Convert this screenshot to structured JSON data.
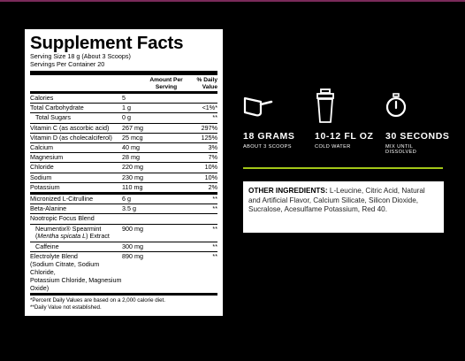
{
  "facts": {
    "title": "Supplement Facts",
    "serving_size": "Serving Size 18 g (About 3 Scoops)",
    "servings_per_container": "Servings Per Container 20",
    "col_amount_line1": "Amount Per",
    "col_amount_line2": "Serving",
    "col_dv_line1": "% Daily",
    "col_dv_line2": "Value",
    "rows": [
      {
        "name": "Calories",
        "amount": "5",
        "dv": ""
      },
      {
        "name": "Total Carbohydrate",
        "amount": "1 g",
        "dv": "<1%*"
      },
      {
        "name": "Total Sugars",
        "amount": "0 g",
        "dv": "**"
      },
      {
        "name": "Vitamin C (as ascorbic acid)",
        "amount": "267 mg",
        "dv": "297%"
      },
      {
        "name": "Vitamin D (as cholecalciferol)",
        "amount": "25 mcg",
        "dv": "125%"
      },
      {
        "name": "Calcium",
        "amount": "40 mg",
        "dv": "3%"
      },
      {
        "name": "Magnesium",
        "amount": "28 mg",
        "dv": "7%"
      },
      {
        "name": "Chloride",
        "amount": "220 mg",
        "dv": "10%"
      },
      {
        "name": "Sodium",
        "amount": "230 mg",
        "dv": "10%"
      },
      {
        "name": "Potassium",
        "amount": "110 mg",
        "dv": "2%"
      },
      {
        "name": "Micronized L-Citrulline",
        "amount": "6 g",
        "dv": "**"
      },
      {
        "name": "Beta-Alanine",
        "amount": "3.5 g",
        "dv": "**"
      },
      {
        "name": "Nootropic Focus Blend",
        "amount": "",
        "dv": ""
      },
      {
        "name_line1": "Neumentix® Spearmint",
        "name_italic": "Mentha spicata L",
        "name_suffix": ") Extract",
        "name_prefix": "(",
        "amount": "900 mg",
        "dv": "**"
      },
      {
        "name": "Caffeine",
        "amount": "300 mg",
        "dv": "**"
      },
      {
        "name_line1": "Electrolyte Blend",
        "name_line2": "(Sodium Citrate, Sodium Chloride,",
        "name_line3": "Potassium Chloride, Magnesium Oxide)",
        "amount": "890 mg",
        "dv": "**"
      }
    ],
    "footnote1": "*Percent Daily Values are based on a 2,000 calorie diet.",
    "footnote2": "**Daily Value not established."
  },
  "stats": [
    {
      "icon": "scoop-icon",
      "big": "18 GRAMS",
      "small": "ABOUT 3 SCOOPS"
    },
    {
      "icon": "shaker-bottle-icon",
      "big": "10-12 FL OZ",
      "small": "COLD WATER"
    },
    {
      "icon": "stopwatch-icon",
      "big": "30 SECONDS",
      "small_line1": "MIX UNTIL",
      "small_line2": "DISSOLVED"
    }
  ],
  "other": {
    "label": "OTHER INGREDIENTS:",
    "text": " L-Leucine, Citric Acid, Natural and Artificial Flavor, Calcium Silicate, Silicon Dioxide, Sucralose, Acesulfame Potassium, Red 40."
  },
  "colors": {
    "accent_line": "#a2c617",
    "background": "#000000",
    "top_stripe": "#7a2a5a"
  }
}
